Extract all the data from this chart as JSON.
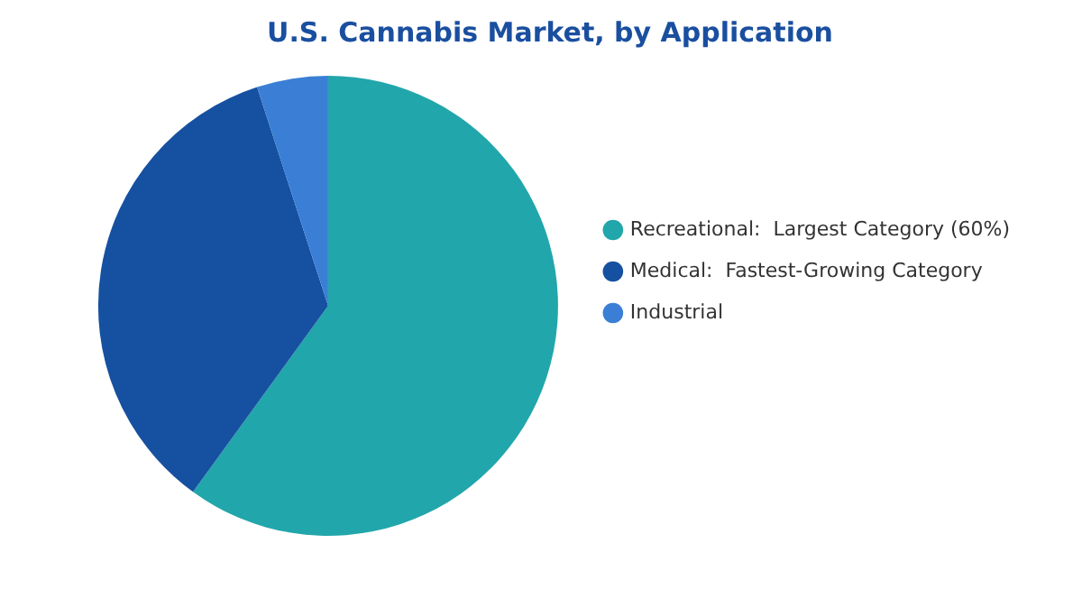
{
  "chart_data": {
    "type": "pie",
    "title": "U.S. Cannabis Market, by Application",
    "categories": [
      "Recreational:  Largest Category (60%)",
      "Medical:  Fastest-Growing Category",
      "Industrial"
    ],
    "values": [
      60,
      35,
      5
    ],
    "colors": [
      "#21a6ab",
      "#1650a0",
      "#3a7fd5"
    ],
    "legend": "right"
  }
}
